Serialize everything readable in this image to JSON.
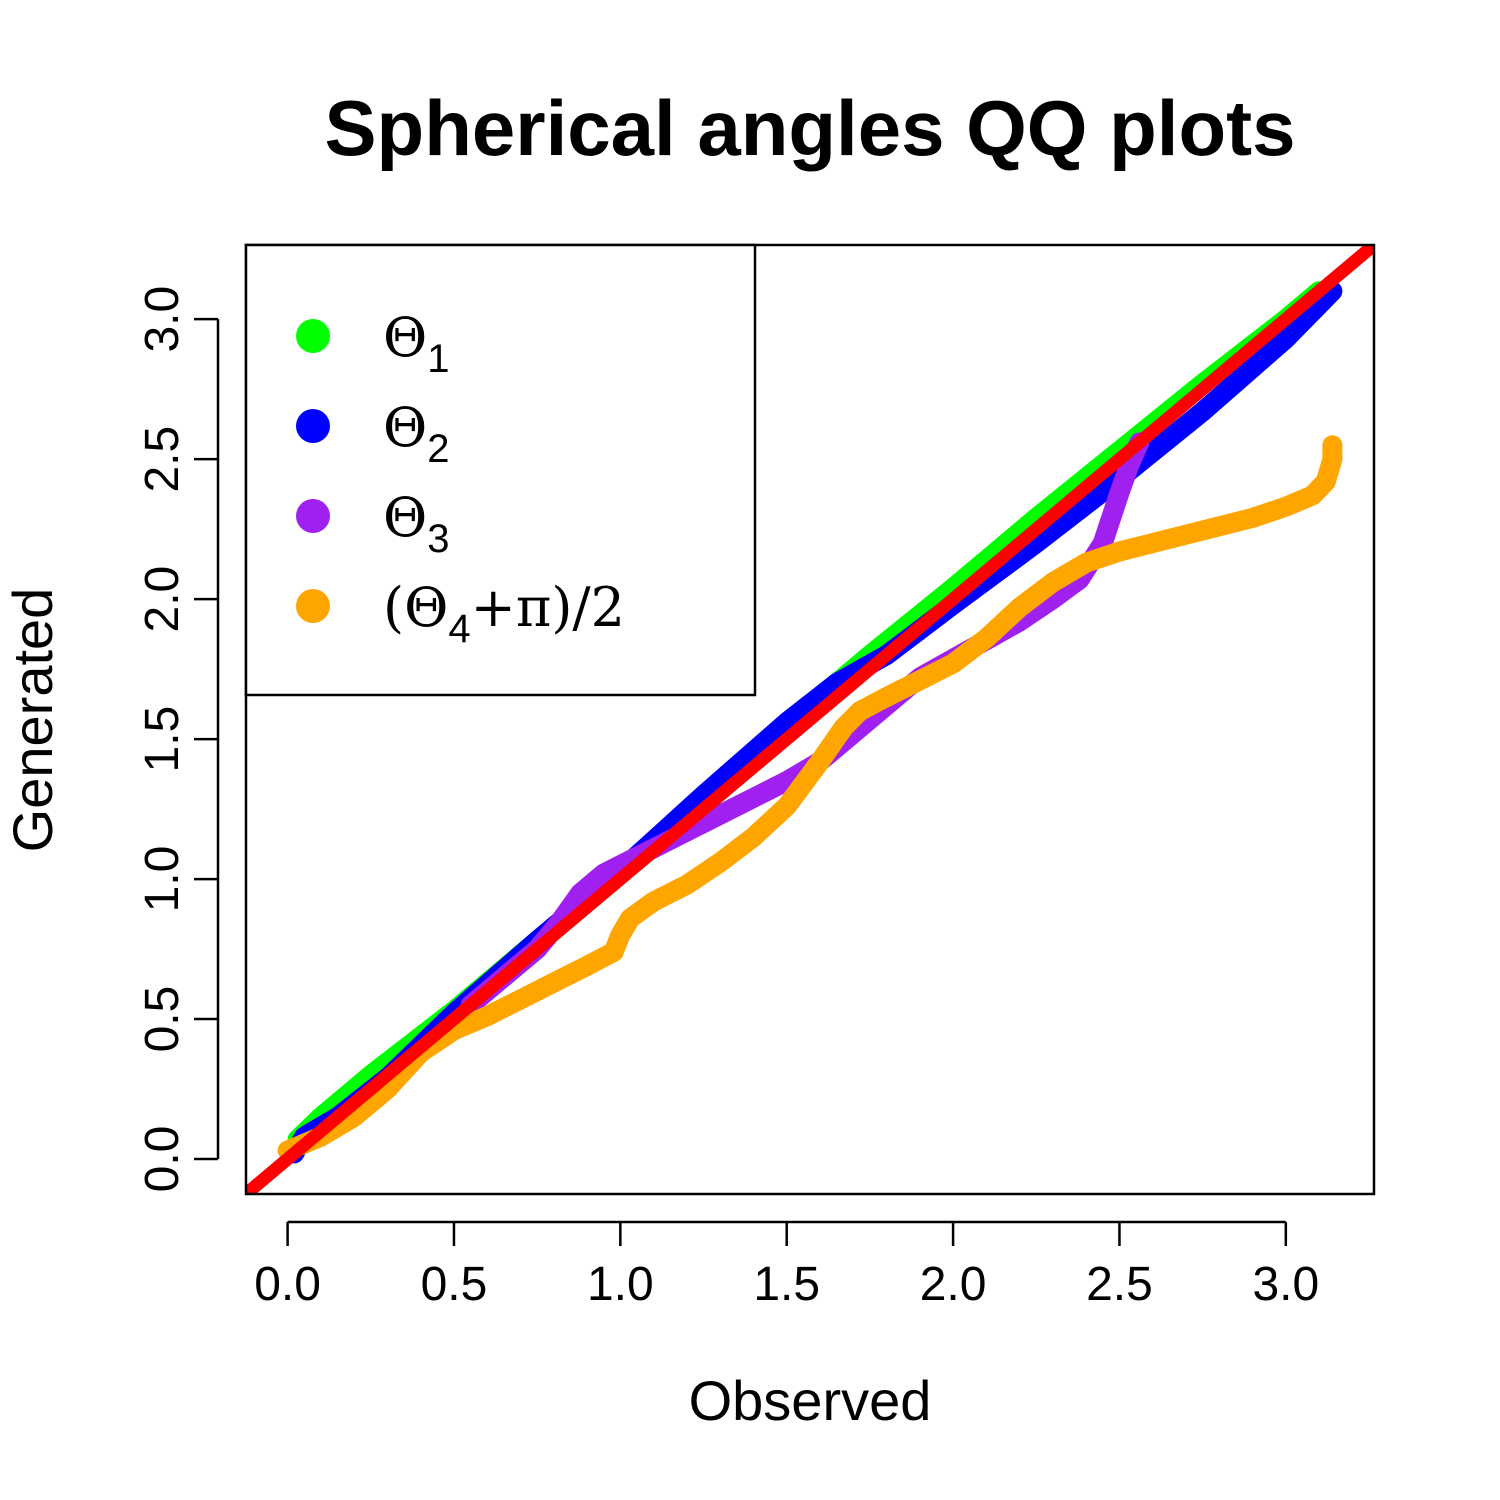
{
  "chart_data": {
    "type": "line",
    "title": "Spherical angles QQ plots",
    "xlabel": "Observed",
    "ylabel": "Generated",
    "xlim": [
      -0.125,
      3.265
    ],
    "ylim": [
      -0.125,
      3.265
    ],
    "xticks": [
      0.0,
      0.5,
      1.0,
      1.5,
      2.0,
      2.5,
      3.0
    ],
    "yticks": [
      0.0,
      0.5,
      1.0,
      1.5,
      2.0,
      2.5,
      3.0
    ],
    "xtick_labels": [
      "0.0",
      "0.5",
      "1.0",
      "1.5",
      "2.0",
      "2.5",
      "3.0"
    ],
    "ytick_labels": [
      "0.0",
      "0.5",
      "1.0",
      "1.5",
      "2.0",
      "2.5",
      "3.0"
    ],
    "grid": false,
    "legend_position": "top-left",
    "series": [
      {
        "name": "Θ1",
        "symbol": "Θ",
        "subscript": "1",
        "suffix": "",
        "color": "#00ff00",
        "x": [
          0.03,
          0.1,
          0.25,
          0.5,
          0.75,
          1.0,
          1.25,
          1.5,
          1.75,
          2.0,
          2.25,
          2.5,
          2.75,
          3.0,
          3.1
        ],
        "y": [
          0.07,
          0.15,
          0.3,
          0.53,
          0.78,
          1.03,
          1.29,
          1.55,
          1.8,
          2.04,
          2.29,
          2.53,
          2.77,
          3.0,
          3.1
        ]
      },
      {
        "name": "Θ2",
        "symbol": "Θ",
        "subscript": "2",
        "suffix": "",
        "color": "#0000ff",
        "x": [
          0.02,
          0.05,
          0.15,
          0.3,
          0.5,
          0.75,
          1.0,
          1.25,
          1.5,
          1.65,
          1.8,
          2.0,
          2.25,
          2.5,
          2.75,
          3.0,
          3.14
        ],
        "y": [
          0.02,
          0.08,
          0.15,
          0.29,
          0.52,
          0.78,
          1.03,
          1.3,
          1.56,
          1.7,
          1.8,
          1.98,
          2.2,
          2.43,
          2.67,
          2.93,
          3.1
        ]
      },
      {
        "name": "Θ3",
        "symbol": "Θ",
        "subscript": "3",
        "suffix": "",
        "color": "#a020f0",
        "x": [
          0.55,
          0.65,
          0.75,
          0.82,
          0.88,
          0.95,
          1.05,
          1.2,
          1.35,
          1.5,
          1.6,
          1.7,
          1.8,
          1.9,
          2.05,
          2.2,
          2.3,
          2.38,
          2.45,
          2.5,
          2.53,
          2.56
        ],
        "y": [
          0.55,
          0.65,
          0.75,
          0.85,
          0.95,
          1.02,
          1.08,
          1.17,
          1.26,
          1.35,
          1.42,
          1.52,
          1.62,
          1.72,
          1.82,
          1.92,
          2.0,
          2.07,
          2.2,
          2.38,
          2.48,
          2.56
        ]
      },
      {
        "name": "(Θ4+π)/2",
        "symbol": "(Θ",
        "subscript": "4",
        "suffix": "+π)/2",
        "color": "#ffa500",
        "x": [
          0.0,
          0.1,
          0.2,
          0.3,
          0.4,
          0.5,
          0.6,
          0.7,
          0.8,
          0.9,
          0.98,
          1.0,
          1.03,
          1.1,
          1.2,
          1.3,
          1.4,
          1.5,
          1.6,
          1.67,
          1.72,
          1.8,
          1.9,
          2.0,
          2.1,
          2.2,
          2.3,
          2.4,
          2.5,
          2.6,
          2.7,
          2.8,
          2.9,
          3.0,
          3.08,
          3.12,
          3.14,
          3.14
        ],
        "y": [
          0.03,
          0.08,
          0.15,
          0.25,
          0.38,
          0.46,
          0.51,
          0.57,
          0.63,
          0.69,
          0.74,
          0.8,
          0.86,
          0.92,
          0.98,
          1.06,
          1.15,
          1.26,
          1.42,
          1.54,
          1.6,
          1.65,
          1.71,
          1.77,
          1.86,
          1.97,
          2.06,
          2.13,
          2.17,
          2.2,
          2.23,
          2.26,
          2.29,
          2.33,
          2.37,
          2.42,
          2.5,
          2.55
        ]
      },
      {
        "name": "identity",
        "in_legend": false,
        "color": "#ff0000",
        "x": [
          -0.125,
          3.265
        ],
        "y": [
          -0.125,
          3.265
        ]
      }
    ]
  }
}
